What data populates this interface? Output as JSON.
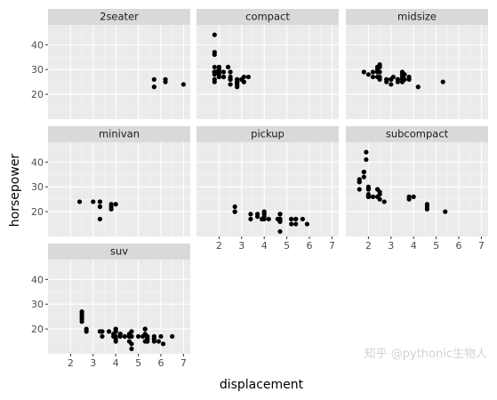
{
  "chart_data": {
    "type": "scatter",
    "xlabel": "displacement",
    "ylabel": "horsepower",
    "xlim": [
      1.0,
      7.3
    ],
    "ylim": [
      10,
      48
    ],
    "xticks": [
      2,
      3,
      4,
      5,
      6,
      7
    ],
    "yticks": [
      20,
      30,
      40
    ],
    "grid": true,
    "facet_by": "class",
    "panels": [
      {
        "name": "2seater",
        "points": [
          [
            5.7,
            26
          ],
          [
            5.7,
            23
          ],
          [
            6.2,
            26
          ],
          [
            6.2,
            25
          ],
          [
            7.0,
            24
          ]
        ]
      },
      {
        "name": "compact",
        "points": [
          [
            1.8,
            29
          ],
          [
            1.8,
            29
          ],
          [
            2.0,
            31
          ],
          [
            2.0,
            30
          ],
          [
            2.8,
            26
          ],
          [
            2.8,
            26
          ],
          [
            3.1,
            27
          ],
          [
            1.8,
            26
          ],
          [
            1.8,
            25
          ],
          [
            2.0,
            28
          ],
          [
            2.0,
            27
          ],
          [
            2.8,
            25
          ],
          [
            2.8,
            25
          ],
          [
            3.1,
            25
          ],
          [
            3.1,
            25
          ],
          [
            2.2,
            27
          ],
          [
            2.2,
            29
          ],
          [
            2.4,
            31
          ],
          [
            2.4,
            31
          ],
          [
            3.0,
            26
          ],
          [
            3.0,
            26
          ],
          [
            3.3,
            27
          ],
          [
            1.8,
            36
          ],
          [
            1.8,
            29
          ],
          [
            1.8,
            29
          ],
          [
            1.8,
            37
          ],
          [
            1.8,
            44
          ],
          [
            2.5,
            26
          ],
          [
            2.5,
            29
          ],
          [
            2.2,
            27
          ],
          [
            2.5,
            24
          ],
          [
            2.5,
            27
          ],
          [
            2.5,
            26
          ],
          [
            2.8,
            24
          ],
          [
            2.8,
            23
          ],
          [
            1.9,
            29
          ],
          [
            2.0,
            30
          ],
          [
            2.0,
            31
          ],
          [
            2.0,
            30
          ],
          [
            2.8,
            25
          ],
          [
            2.8,
            25
          ],
          [
            1.8,
            31
          ],
          [
            2.0,
            29
          ],
          [
            2.8,
            25
          ],
          [
            2.8,
            24
          ],
          [
            1.8,
            29
          ],
          [
            1.8,
            28
          ]
        ]
      },
      {
        "name": "midsize",
        "points": [
          [
            2.8,
            26
          ],
          [
            3.1,
            27
          ],
          [
            4.2,
            23
          ],
          [
            2.4,
            29
          ],
          [
            2.4,
            31
          ],
          [
            3.0,
            26
          ],
          [
            3.0,
            26
          ],
          [
            3.5,
            28
          ],
          [
            3.3,
            25
          ],
          [
            2.5,
            29
          ],
          [
            2.5,
            27
          ],
          [
            2.4,
            29
          ],
          [
            2.5,
            32
          ],
          [
            2.5,
            31
          ],
          [
            3.3,
            26
          ],
          [
            3.3,
            26
          ],
          [
            3.8,
            27
          ],
          [
            3.8,
            26
          ],
          [
            3.5,
            29
          ],
          [
            3.5,
            26
          ],
          [
            3.5,
            25
          ],
          [
            5.3,
            25
          ],
          [
            2.4,
            30
          ],
          [
            2.4,
            31
          ],
          [
            3.5,
            26
          ],
          [
            3.5,
            27
          ],
          [
            2.2,
            29
          ],
          [
            2.4,
            27
          ],
          [
            3.0,
            26
          ],
          [
            3.5,
            28
          ],
          [
            1.8,
            29
          ],
          [
            2.0,
            28
          ],
          [
            2.8,
            26
          ],
          [
            2.8,
            25
          ],
          [
            3.6,
            28
          ],
          [
            3.6,
            26
          ],
          [
            2.2,
            27
          ],
          [
            2.5,
            26
          ],
          [
            3.0,
            24
          ],
          [
            3.3,
            26
          ],
          [
            3.6,
            28
          ]
        ]
      },
      {
        "name": "minivan",
        "points": [
          [
            3.0,
            24
          ],
          [
            3.3,
            24
          ],
          [
            3.3,
            22
          ],
          [
            3.3,
            22
          ],
          [
            3.3,
            24
          ],
          [
            3.8,
            22
          ],
          [
            3.8,
            21
          ],
          [
            3.8,
            23
          ],
          [
            4.0,
            23
          ],
          [
            2.4,
            24
          ],
          [
            3.3,
            17
          ]
        ]
      },
      {
        "name": "pickup",
        "points": [
          [
            2.7,
            20
          ],
          [
            2.7,
            22
          ],
          [
            2.7,
            20
          ],
          [
            3.4,
            17
          ],
          [
            3.4,
            19
          ],
          [
            4.0,
            17
          ],
          [
            4.0,
            18
          ],
          [
            4.7,
            17
          ],
          [
            4.7,
            12
          ],
          [
            4.7,
            16
          ],
          [
            4.7,
            17
          ],
          [
            5.2,
            17
          ],
          [
            5.7,
            17
          ],
          [
            3.7,
            18
          ],
          [
            3.7,
            19
          ],
          [
            3.9,
            17
          ],
          [
            3.9,
            17
          ],
          [
            4.7,
            17
          ],
          [
            4.7,
            19
          ],
          [
            4.7,
            16
          ],
          [
            5.2,
            15
          ],
          [
            5.2,
            17
          ],
          [
            4.2,
            17
          ],
          [
            4.6,
            17
          ],
          [
            4.6,
            17
          ],
          [
            5.4,
            15
          ],
          [
            5.4,
            17
          ],
          [
            4.0,
            20
          ],
          [
            4.0,
            19
          ],
          [
            4.7,
            17
          ],
          [
            5.9,
            15
          ],
          [
            4.7,
            19
          ],
          [
            5.4,
            17
          ]
        ]
      },
      {
        "name": "subcompact",
        "points": [
          [
            3.8,
            26
          ],
          [
            3.8,
            25
          ],
          [
            4.0,
            26
          ],
          [
            4.6,
            23
          ],
          [
            4.6,
            21
          ],
          [
            4.6,
            22
          ],
          [
            5.4,
            20
          ],
          [
            1.6,
            32
          ],
          [
            1.6,
            33
          ],
          [
            1.6,
            32
          ],
          [
            1.6,
            29
          ],
          [
            1.6,
            32
          ],
          [
            1.8,
            34
          ],
          [
            1.8,
            36
          ],
          [
            1.8,
            36
          ],
          [
            2.0,
            29
          ],
          [
            2.0,
            26
          ],
          [
            2.0,
            27
          ],
          [
            2.0,
            30
          ],
          [
            2.0,
            26
          ],
          [
            2.0,
            26
          ],
          [
            2.4,
            26
          ],
          [
            2.4,
            29
          ],
          [
            2.5,
            27
          ],
          [
            2.5,
            25
          ],
          [
            2.7,
            24
          ],
          [
            1.9,
            44
          ],
          [
            1.9,
            41
          ],
          [
            2.0,
            29
          ],
          [
            2.0,
            26
          ],
          [
            2.2,
            26
          ],
          [
            2.5,
            28
          ]
        ]
      },
      {
        "name": "suv",
        "points": [
          [
            5.3,
            20
          ],
          [
            5.3,
            15
          ],
          [
            5.3,
            20
          ],
          [
            5.7,
            17
          ],
          [
            6.0,
            17
          ],
          [
            3.7,
            19
          ],
          [
            3.9,
            17
          ],
          [
            4.7,
            17
          ],
          [
            4.7,
            12
          ],
          [
            4.7,
            17
          ],
          [
            5.2,
            17
          ],
          [
            5.7,
            16
          ],
          [
            5.9,
            15
          ],
          [
            4.6,
            17
          ],
          [
            5.4,
            17
          ],
          [
            5.4,
            16
          ],
          [
            4.0,
            19
          ],
          [
            4.0,
            19
          ],
          [
            4.0,
            20
          ],
          [
            4.0,
            17
          ],
          [
            4.6,
            17
          ],
          [
            5.0,
            17
          ],
          [
            4.2,
            17
          ],
          [
            4.2,
            18
          ],
          [
            4.6,
            17
          ],
          [
            4.6,
            18
          ],
          [
            5.4,
            17
          ],
          [
            2.5,
            25
          ],
          [
            2.5,
            24
          ],
          [
            2.5,
            27
          ],
          [
            2.5,
            25
          ],
          [
            2.5,
            26
          ],
          [
            2.5,
            23
          ],
          [
            2.7,
            20
          ],
          [
            2.7,
            19
          ],
          [
            3.4,
            17
          ],
          [
            4.0,
            20
          ],
          [
            4.7,
            17
          ],
          [
            4.7,
            19
          ],
          [
            5.7,
            15
          ],
          [
            6.5,
            17
          ],
          [
            4.4,
            17
          ],
          [
            5.4,
            15
          ],
          [
            3.3,
            19
          ],
          [
            3.4,
            19
          ],
          [
            4.0,
            15
          ],
          [
            4.7,
            14
          ],
          [
            5.4,
            16
          ],
          [
            5.4,
            15
          ],
          [
            4.0,
            16
          ],
          [
            4.4,
            17
          ],
          [
            3.9,
            18
          ],
          [
            5.3,
            18
          ],
          [
            4.2,
            18
          ],
          [
            5.7,
            16
          ],
          [
            6.1,
            14
          ],
          [
            4.6,
            15
          ]
        ]
      }
    ]
  },
  "watermark": "知乎 @pythonic生物人"
}
